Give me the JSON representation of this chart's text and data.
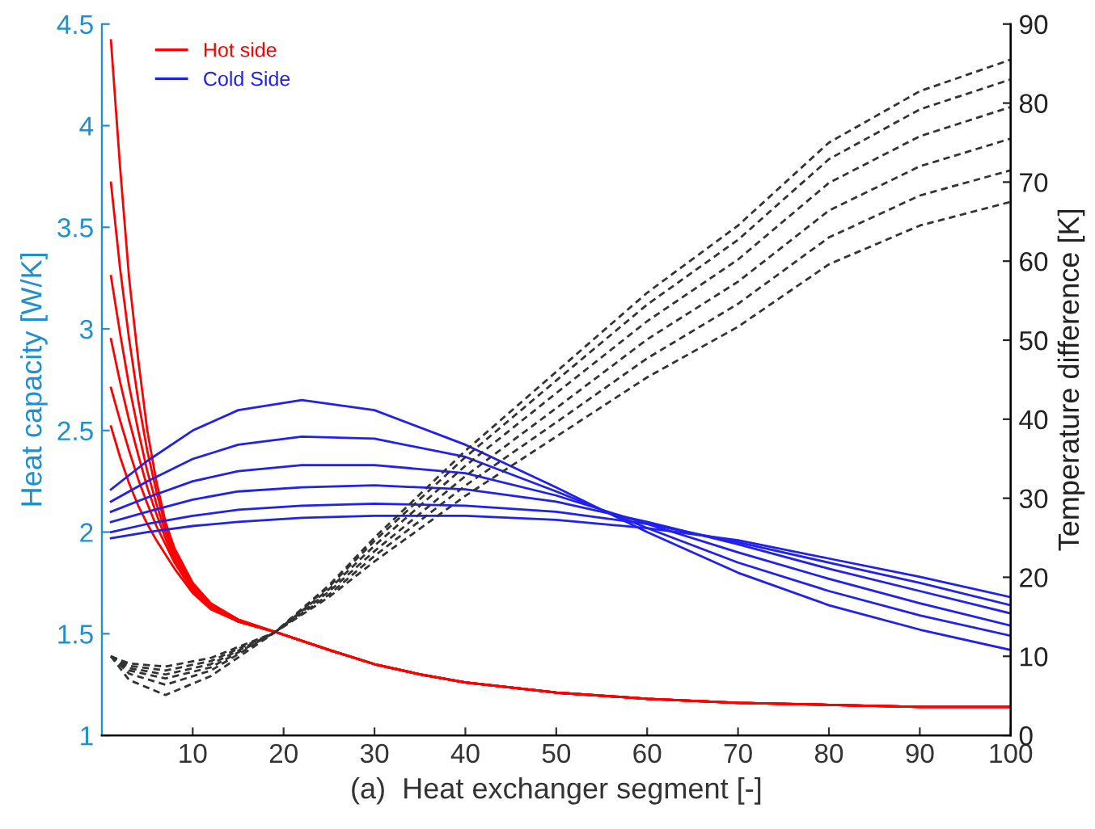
{
  "chart_data": {
    "type": "line",
    "xlabel": "(a)  Heat exchanger segment [-]",
    "ylabel": "Heat capacity [W/K]",
    "y2label": "Temperature difference [K]",
    "xlim": [
      0,
      100
    ],
    "xticks": [
      10,
      20,
      30,
      40,
      50,
      60,
      70,
      80,
      90,
      100
    ],
    "ylim": [
      1,
      4.5
    ],
    "yticks": [
      1,
      1.5,
      2,
      2.5,
      3,
      3.5,
      4,
      4.5
    ],
    "y2lim": [
      0,
      90
    ],
    "y2ticks": [
      0,
      10,
      20,
      30,
      40,
      50,
      60,
      70,
      80,
      90
    ],
    "grid": false,
    "legend": "top left",
    "series": [
      {
        "name": "Hot side",
        "color": "#ff0000",
        "line_style": "solid",
        "x": [
          1,
          2,
          3,
          4,
          5,
          6,
          7,
          8,
          10,
          12,
          15,
          19,
          25,
          30,
          35,
          40,
          50,
          60,
          70,
          80,
          90,
          100
        ],
        "values": [
          4.42,
          3.8,
          3.25,
          2.85,
          2.5,
          2.25,
          2.05,
          1.92,
          1.75,
          1.65,
          1.57,
          1.51,
          1.42,
          1.35,
          1.3,
          1.26,
          1.21,
          1.18,
          1.16,
          1.15,
          1.14,
          1.14
        ]
      },
      {
        "color": "#ff0000",
        "line_style": "solid",
        "x": [
          1,
          2,
          3,
          4,
          5,
          6,
          7,
          8,
          10,
          12,
          15,
          19,
          25,
          30,
          35,
          40,
          50,
          60,
          70,
          80,
          90,
          100
        ],
        "values": [
          3.72,
          3.3,
          2.95,
          2.65,
          2.4,
          2.2,
          2.03,
          1.9,
          1.74,
          1.64,
          1.57,
          1.51,
          1.42,
          1.35,
          1.3,
          1.26,
          1.21,
          1.18,
          1.16,
          1.15,
          1.14,
          1.14
        ]
      },
      {
        "color": "#ff0000",
        "line_style": "solid",
        "x": [
          1,
          2,
          3,
          4,
          5,
          6,
          7,
          8,
          10,
          12,
          15,
          19,
          25,
          30,
          35,
          40,
          50,
          60,
          70,
          80,
          90,
          100
        ],
        "values": [
          3.26,
          2.98,
          2.72,
          2.5,
          2.3,
          2.14,
          2.0,
          1.88,
          1.73,
          1.64,
          1.56,
          1.51,
          1.42,
          1.35,
          1.3,
          1.26,
          1.21,
          1.18,
          1.16,
          1.15,
          1.14,
          1.14
        ]
      },
      {
        "color": "#ff0000",
        "line_style": "solid",
        "x": [
          1,
          2,
          3,
          4,
          5,
          6,
          7,
          8,
          10,
          12,
          15,
          19,
          25,
          30,
          35,
          40,
          50,
          60,
          70,
          80,
          90,
          100
        ],
        "values": [
          2.95,
          2.74,
          2.55,
          2.38,
          2.22,
          2.09,
          1.97,
          1.86,
          1.72,
          1.63,
          1.56,
          1.51,
          1.42,
          1.35,
          1.3,
          1.26,
          1.21,
          1.18,
          1.16,
          1.15,
          1.14,
          1.14
        ]
      },
      {
        "color": "#ff0000",
        "line_style": "solid",
        "x": [
          1,
          2,
          3,
          4,
          5,
          6,
          7,
          8,
          10,
          12,
          15,
          19,
          25,
          30,
          35,
          40,
          50,
          60,
          70,
          80,
          90,
          100
        ],
        "values": [
          2.71,
          2.55,
          2.4,
          2.26,
          2.14,
          2.03,
          1.94,
          1.85,
          1.71,
          1.63,
          1.56,
          1.51,
          1.42,
          1.35,
          1.3,
          1.26,
          1.21,
          1.18,
          1.16,
          1.15,
          1.14,
          1.14
        ]
      },
      {
        "color": "#ff0000",
        "line_style": "solid",
        "x": [
          1,
          2,
          3,
          4,
          5,
          6,
          7,
          8,
          10,
          12,
          15,
          19,
          25,
          30,
          35,
          40,
          50,
          60,
          70,
          80,
          90,
          100
        ],
        "values": [
          2.52,
          2.37,
          2.24,
          2.13,
          2.04,
          1.96,
          1.89,
          1.82,
          1.7,
          1.62,
          1.56,
          1.51,
          1.42,
          1.35,
          1.3,
          1.26,
          1.21,
          1.18,
          1.16,
          1.15,
          1.14,
          1.14
        ]
      },
      {
        "name": "Cold Side",
        "color": "#2020f0",
        "line_style": "solid",
        "x": [
          1,
          5,
          10,
          15,
          22,
          30,
          40,
          50,
          60,
          70,
          80,
          90,
          100
        ],
        "values": [
          2.21,
          2.35,
          2.5,
          2.6,
          2.65,
          2.6,
          2.43,
          2.22,
          2.0,
          1.8,
          1.64,
          1.52,
          1.42
        ]
      },
      {
        "color": "#2020f0",
        "line_style": "solid",
        "x": [
          1,
          5,
          10,
          15,
          22,
          30,
          40,
          50,
          60,
          70,
          80,
          90,
          100
        ],
        "values": [
          2.15,
          2.25,
          2.36,
          2.43,
          2.47,
          2.46,
          2.37,
          2.2,
          2.02,
          1.85,
          1.71,
          1.59,
          1.49
        ]
      },
      {
        "color": "#2020f0",
        "line_style": "solid",
        "x": [
          1,
          5,
          10,
          15,
          22,
          30,
          40,
          50,
          60,
          70,
          80,
          90,
          100
        ],
        "values": [
          2.1,
          2.17,
          2.25,
          2.3,
          2.33,
          2.33,
          2.29,
          2.18,
          2.04,
          1.9,
          1.77,
          1.65,
          1.54
        ]
      },
      {
        "color": "#2020f0",
        "line_style": "solid",
        "x": [
          1,
          5,
          10,
          15,
          22,
          30,
          40,
          50,
          60,
          70,
          80,
          90,
          100
        ],
        "values": [
          2.05,
          2.1,
          2.16,
          2.2,
          2.22,
          2.23,
          2.21,
          2.15,
          2.05,
          1.94,
          1.82,
          1.71,
          1.6
        ]
      },
      {
        "color": "#2020f0",
        "line_style": "solid",
        "x": [
          1,
          5,
          10,
          15,
          22,
          30,
          40,
          50,
          60,
          70,
          80,
          90,
          100
        ],
        "values": [
          2.0,
          2.04,
          2.08,
          2.11,
          2.13,
          2.14,
          2.13,
          2.1,
          2.04,
          1.95,
          1.85,
          1.75,
          1.64
        ]
      },
      {
        "color": "#2020f0",
        "line_style": "solid",
        "x": [
          1,
          5,
          10,
          15,
          22,
          30,
          40,
          50,
          60,
          70,
          80,
          90,
          100
        ],
        "values": [
          1.97,
          2.0,
          2.03,
          2.05,
          2.07,
          2.08,
          2.08,
          2.06,
          2.02,
          1.96,
          1.87,
          1.78,
          1.68
        ]
      },
      {
        "color": "#333333",
        "line_style": "dashed",
        "axis": "y2",
        "x": [
          1,
          3,
          7,
          12,
          19,
          25,
          30,
          40,
          50,
          60,
          70,
          80,
          90,
          100
        ],
        "values": [
          10,
          7,
          5.1,
          7.5,
          13,
          19,
          25,
          36,
          46,
          56,
          64.5,
          75,
          81.5,
          85.5
        ]
      },
      {
        "color": "#333333",
        "line_style": "dashed",
        "axis": "y2",
        "x": [
          1,
          3,
          7,
          12,
          19,
          25,
          30,
          40,
          50,
          60,
          70,
          80,
          90,
          100
        ],
        "values": [
          10,
          7.8,
          6.4,
          8.2,
          13,
          18.8,
          24.6,
          35.2,
          44.9,
          54.5,
          62.7,
          72.9,
          79.2,
          83
        ]
      },
      {
        "color": "#333333",
        "line_style": "dashed",
        "axis": "y2",
        "x": [
          1,
          3,
          7,
          12,
          19,
          25,
          30,
          40,
          50,
          60,
          70,
          80,
          90,
          100
        ],
        "values": [
          10,
          8.2,
          7.2,
          8.6,
          13,
          18.5,
          24,
          34.1,
          43.3,
          52.4,
          60.2,
          69.9,
          75.8,
          79.5
        ]
      },
      {
        "color": "#333333",
        "line_style": "dashed",
        "axis": "y2",
        "x": [
          1,
          3,
          7,
          12,
          19,
          25,
          30,
          40,
          50,
          60,
          70,
          80,
          90,
          100
        ],
        "values": [
          10,
          8.5,
          7.7,
          9,
          13,
          18.2,
          23.3,
          32.8,
          41.4,
          50.1,
          57.4,
          66.4,
          72,
          75.5
        ]
      },
      {
        "color": "#333333",
        "line_style": "dashed",
        "axis": "y2",
        "x": [
          1,
          3,
          7,
          12,
          19,
          25,
          30,
          40,
          50,
          60,
          70,
          80,
          90,
          100
        ],
        "values": [
          10,
          8.8,
          8.2,
          9.4,
          13,
          17.8,
          22.7,
          31.6,
          39.6,
          47.7,
          54.6,
          63,
          68.3,
          71.5
        ]
      },
      {
        "color": "#333333",
        "line_style": "dashed",
        "axis": "y2",
        "x": [
          1,
          3,
          7,
          12,
          19,
          25,
          30,
          40,
          50,
          60,
          70,
          80,
          90,
          100
        ],
        "values": [
          10,
          9.1,
          8.7,
          9.8,
          13,
          17.5,
          22,
          30.3,
          37.8,
          45.3,
          51.7,
          59.6,
          64.5,
          67.5
        ]
      }
    ]
  }
}
